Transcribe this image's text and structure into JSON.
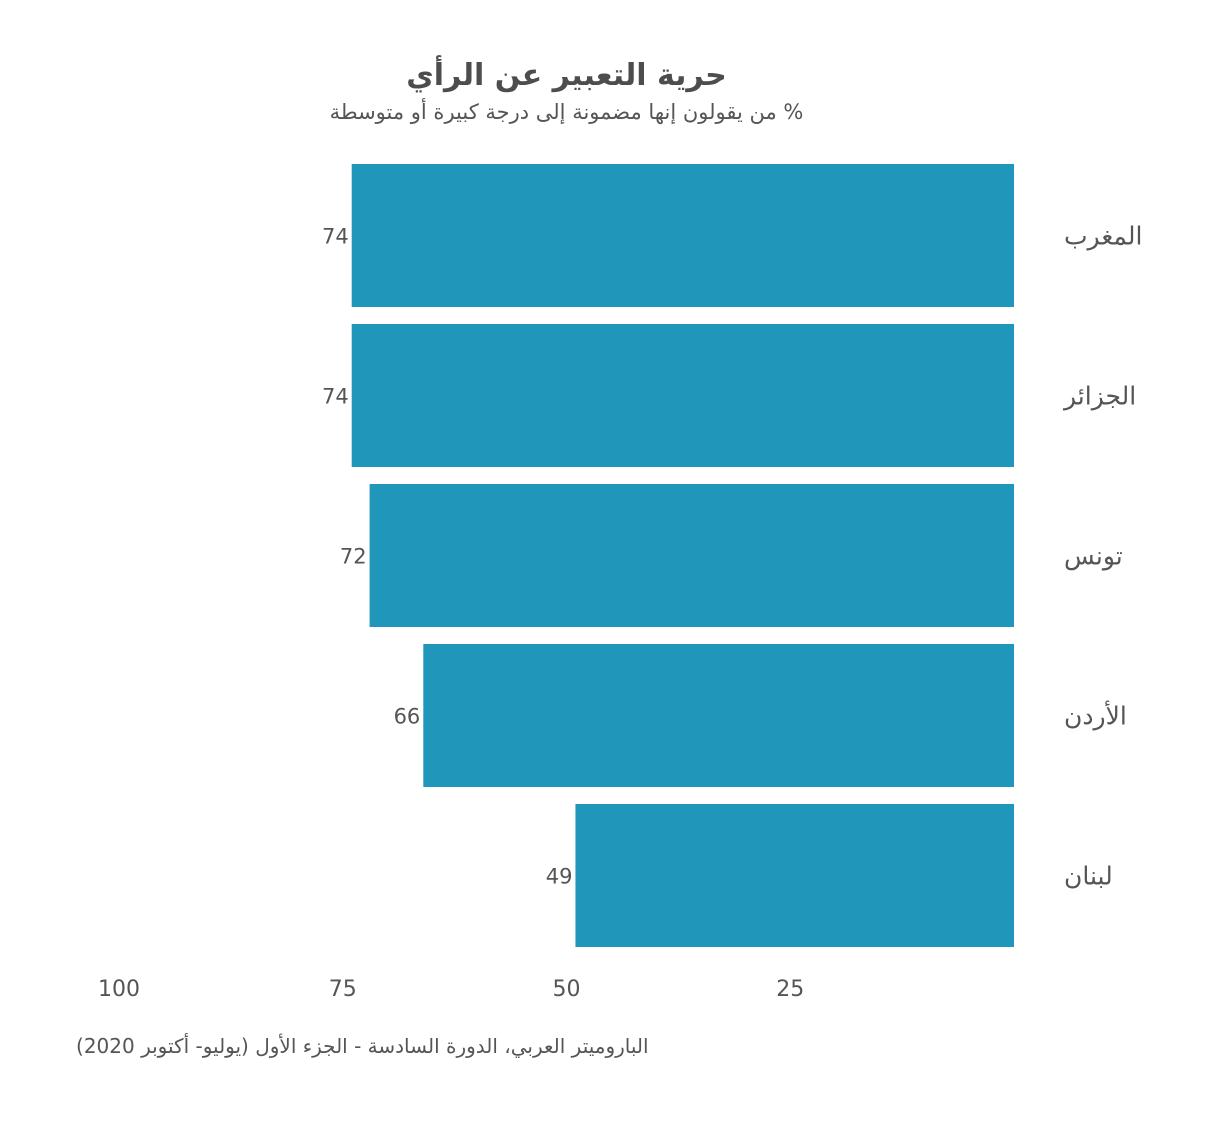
{
  "chart_data": {
    "type": "bar",
    "orientation": "horizontal-rtl",
    "title": "حرية التعبير عن الرأي",
    "subtitle": "% من يقولون إنها مضمونة إلى درجة كبيرة أو متوسطة",
    "categories": [
      "المغرب",
      "الجزائر",
      "تونس",
      "الأردن",
      "لبنان"
    ],
    "values": [
      74,
      74,
      72,
      66,
      49
    ],
    "xlim": [
      0,
      100
    ],
    "xticks": [
      100,
      75,
      50,
      25
    ],
    "grid": false,
    "bar_color": "#2196bb",
    "source": "الباروميتر العربي، الدورة السادسة - الجزء الأول (يوليو- أكتوبر 2020)"
  }
}
